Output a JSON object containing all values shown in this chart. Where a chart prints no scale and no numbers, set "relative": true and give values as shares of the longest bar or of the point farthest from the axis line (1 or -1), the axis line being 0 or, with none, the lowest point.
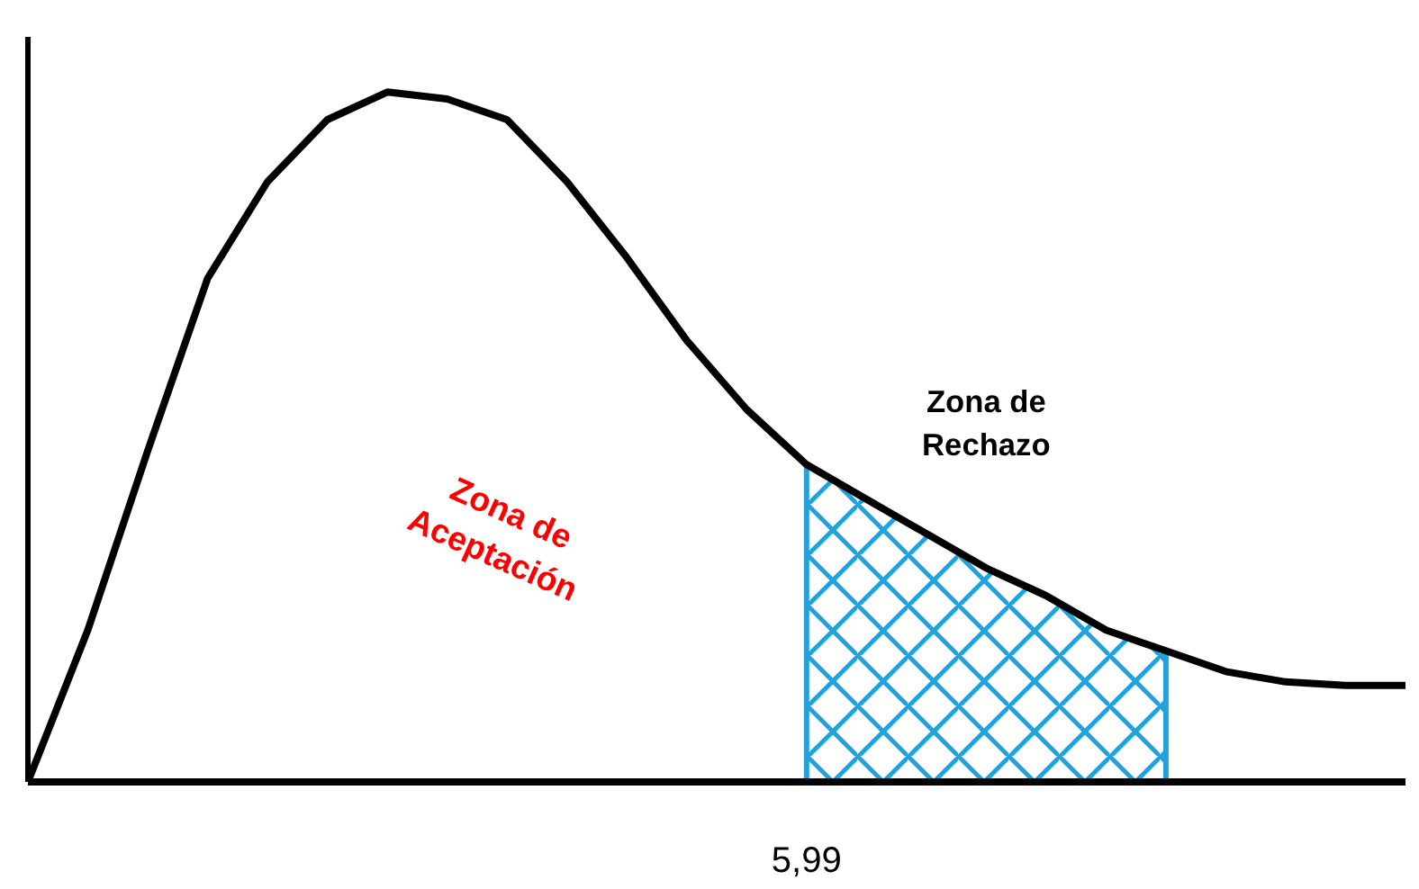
{
  "chart_data": {
    "type": "line",
    "relative": true,
    "marker": "none",
    "line_style": "solid",
    "categories": [
      null,
      null,
      null,
      null,
      null,
      null,
      null,
      null,
      null,
      null,
      null,
      null,
      null,
      null,
      null,
      null,
      null,
      null,
      null,
      null,
      null,
      null,
      null,
      null
    ],
    "series": [
      {
        "color": "#000000",
        "values": [
          0,
          0.22,
          0.48,
          0.73,
          0.87,
          0.96,
          1.0,
          0.99,
          0.96,
          0.87,
          0.76,
          0.64,
          0.54,
          0.46,
          0.41,
          0.36,
          0.31,
          0.27,
          0.22,
          0.19,
          0.16,
          0.145,
          0.14,
          0.14
        ]
      },
      {
        "type": "area",
        "color": "#1fa3e0",
        "values": [
          null,
          null,
          null,
          null,
          null,
          null,
          null,
          null,
          null,
          null,
          null,
          null,
          null,
          0.46,
          0.41,
          0.36,
          0.31,
          0.27,
          0.22,
          0.19,
          null,
          null,
          null,
          null
        ]
      }
    ],
    "annotations": [
      "Zona de Aceptación",
      "Zona de Rechazo",
      "5,99"
    ]
  }
}
